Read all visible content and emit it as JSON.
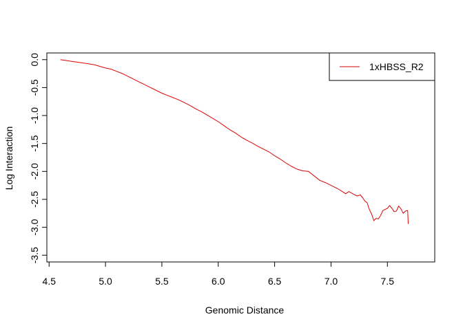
{
  "chart_data": {
    "type": "line",
    "xlabel": "Genomic Distance",
    "ylabel": "Log Interaction",
    "xlim": [
      4.48,
      7.92
    ],
    "ylim": [
      -3.62,
      0.12
    ],
    "x_ticks": [
      4.5,
      5.0,
      5.5,
      6.0,
      6.5,
      7.0,
      7.5
    ],
    "x_tick_labels": [
      "4.5",
      "5.0",
      "5.5",
      "6.0",
      "6.5",
      "7.0",
      "7.5"
    ],
    "y_ticks": [
      0.0,
      -0.5,
      -1.0,
      -1.5,
      -2.0,
      -2.5,
      -3.0,
      -3.5
    ],
    "y_tick_labels": [
      "0.0",
      "-0.5",
      "-1.0",
      "-1.5",
      "-2.0",
      "-2.5",
      "-3.0",
      "-3.5"
    ],
    "grid": false,
    "legend_position": "top-right",
    "series": [
      {
        "name": "1xHBSS_R2",
        "color": "#dd0000",
        "x": [
          4.6,
          4.65,
          4.7,
          4.75,
          4.8,
          4.85,
          4.9,
          4.95,
          5.0,
          5.05,
          5.1,
          5.15,
          5.2,
          5.25,
          5.3,
          5.35,
          5.4,
          5.45,
          5.5,
          5.55,
          5.6,
          5.65,
          5.7,
          5.75,
          5.8,
          5.85,
          5.9,
          5.95,
          6.0,
          6.05,
          6.1,
          6.15,
          6.2,
          6.25,
          6.3,
          6.35,
          6.4,
          6.45,
          6.5,
          6.55,
          6.6,
          6.65,
          6.7,
          6.75,
          6.8,
          6.85,
          6.9,
          6.95,
          7.0,
          7.03,
          7.06,
          7.1,
          7.13,
          7.16,
          7.2,
          7.23,
          7.26,
          7.28,
          7.3,
          7.32,
          7.34,
          7.36,
          7.38,
          7.4,
          7.42,
          7.44,
          7.46,
          7.48,
          7.5,
          7.52,
          7.54,
          7.56,
          7.58,
          7.6,
          7.62,
          7.64,
          7.66,
          7.68,
          7.685
        ],
        "y": [
          0.0,
          -0.015,
          -0.03,
          -0.045,
          -0.06,
          -0.075,
          -0.09,
          -0.12,
          -0.15,
          -0.17,
          -0.21,
          -0.25,
          -0.3,
          -0.35,
          -0.4,
          -0.45,
          -0.5,
          -0.55,
          -0.6,
          -0.64,
          -0.68,
          -0.72,
          -0.77,
          -0.82,
          -0.88,
          -0.93,
          -0.99,
          -1.05,
          -1.11,
          -1.18,
          -1.25,
          -1.31,
          -1.38,
          -1.44,
          -1.49,
          -1.55,
          -1.6,
          -1.65,
          -1.72,
          -1.78,
          -1.85,
          -1.91,
          -1.96,
          -1.99,
          -2.0,
          -2.08,
          -2.16,
          -2.2,
          -2.25,
          -2.28,
          -2.31,
          -2.36,
          -2.4,
          -2.36,
          -2.41,
          -2.44,
          -2.42,
          -2.47,
          -2.53,
          -2.56,
          -2.68,
          -2.76,
          -2.88,
          -2.84,
          -2.85,
          -2.79,
          -2.7,
          -2.68,
          -2.66,
          -2.61,
          -2.66,
          -2.72,
          -2.71,
          -2.62,
          -2.67,
          -2.75,
          -2.71,
          -2.7,
          -2.94
        ]
      }
    ]
  }
}
